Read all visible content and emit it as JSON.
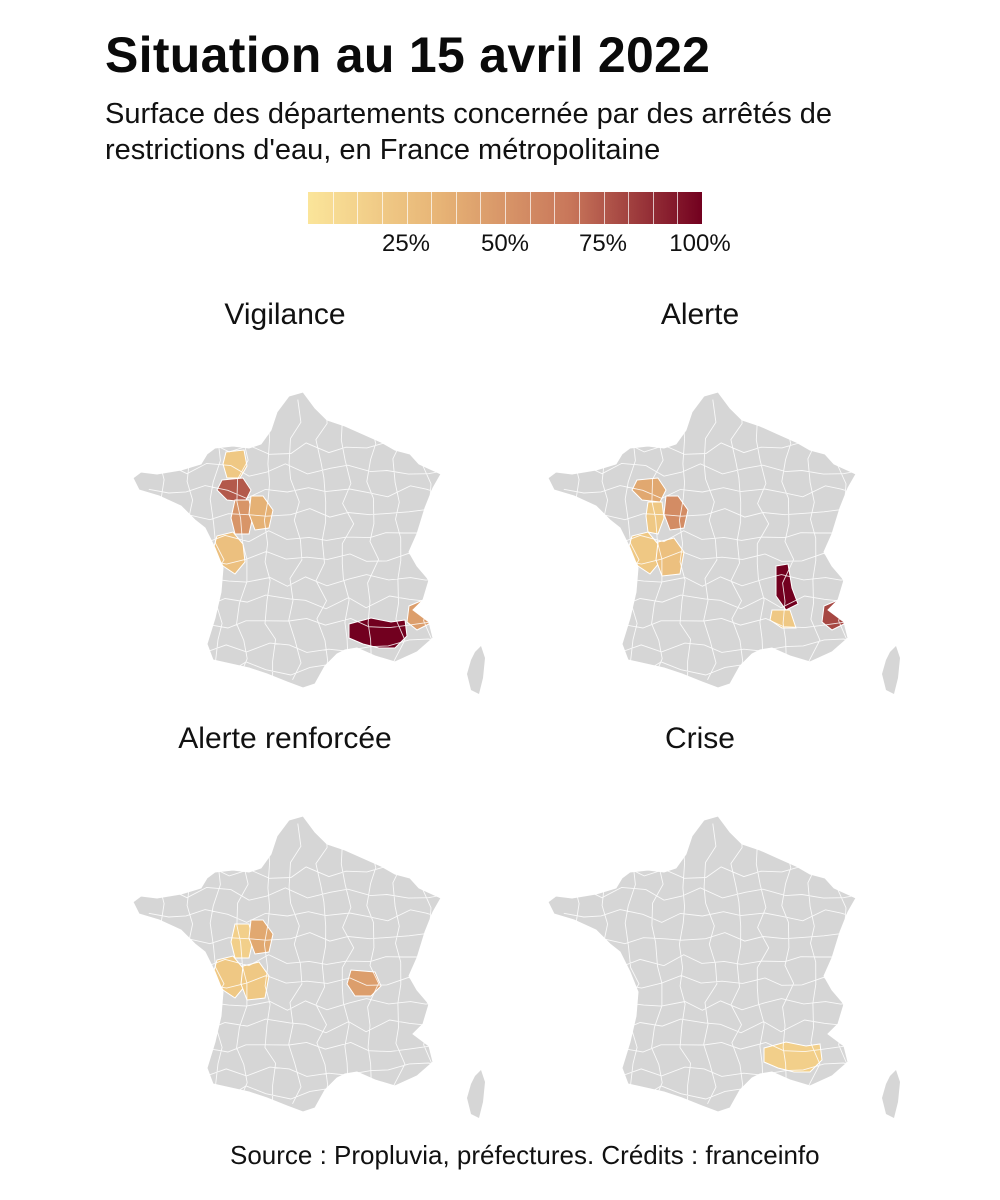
{
  "title": "Situation au 15 avril 2022",
  "subtitle": "Surface des départements concernée par des arrêtés de restrictions d'eau, en France métropolitaine",
  "legend": {
    "ticks": [
      "25%",
      "50%",
      "75%",
      "100%"
    ],
    "colors": [
      "#fbe59a",
      "#e7b476",
      "#c8765a",
      "#72001f"
    ]
  },
  "base_color": "#d6d6d6",
  "panels": [
    {
      "title": "Vigilance",
      "highlights": [
        {
          "region": "mayenne-north",
          "share": 0.2
        },
        {
          "region": "maine-et-loire",
          "share": 0.75
        },
        {
          "region": "deux-sevres",
          "share": 0.5
        },
        {
          "region": "vienne",
          "share": 0.35
        },
        {
          "region": "charente-maritime",
          "share": 0.25
        },
        {
          "region": "bouches-du-rhone-var",
          "share": 1.0
        },
        {
          "region": "alpes-maritimes",
          "share": 0.45
        }
      ]
    },
    {
      "title": "Alerte",
      "highlights": [
        {
          "region": "maine-et-loire",
          "share": 0.4
        },
        {
          "region": "deux-sevres-north",
          "share": 0.2
        },
        {
          "region": "vienne",
          "share": 0.55
        },
        {
          "region": "charente-maritime",
          "share": 0.2
        },
        {
          "region": "charente",
          "share": 0.25
        },
        {
          "region": "drome",
          "share": 1.0
        },
        {
          "region": "alpes-maritimes",
          "share": 0.8
        },
        {
          "region": "vaucluse",
          "share": 0.2
        }
      ]
    },
    {
      "title": "Alerte renforcée",
      "highlights": [
        {
          "region": "deux-sevres",
          "share": 0.15
        },
        {
          "region": "vienne",
          "share": 0.4
        },
        {
          "region": "charente-maritime",
          "share": 0.2
        },
        {
          "region": "charente",
          "share": 0.2
        },
        {
          "region": "loire-rhone",
          "share": 0.45
        }
      ]
    },
    {
      "title": "Crise",
      "highlights": [
        {
          "region": "bouches-du-rhone-var",
          "share": 0.15
        }
      ]
    }
  ],
  "source": "Source : Propluvia, préfectures. Crédits : franceinfo"
}
